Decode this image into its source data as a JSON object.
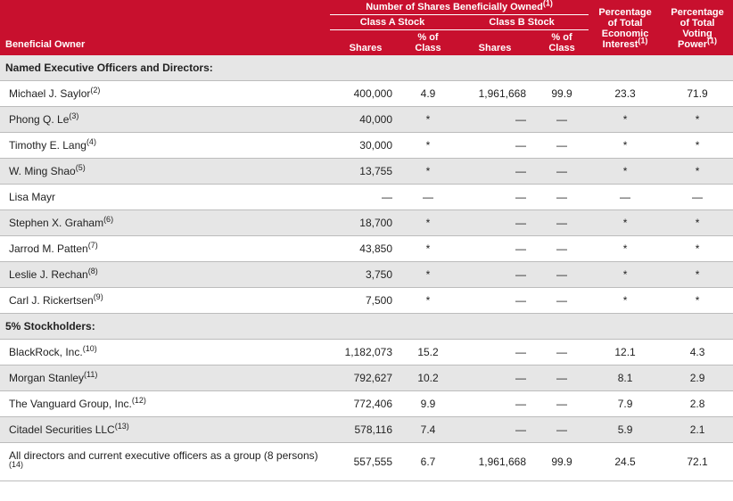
{
  "colors": {
    "header_bg": "#c8102e",
    "header_text": "#ffffff",
    "row_white": "#ffffff",
    "row_gray": "#e6e6e6",
    "row_border": "#bcbcbc",
    "body_text": "#222222"
  },
  "fonts": {
    "family": "Arial",
    "body_size_pt": 9,
    "header_size_pt": 8
  },
  "header": {
    "shares_owned": "Number of Shares Beneficially Owned",
    "shares_owned_sup": "(1)",
    "class_a": "Class A Stock",
    "class_b": "Class B Stock",
    "beneficial_owner": "Beneficial Owner",
    "shares": "Shares",
    "pct_of_class": "% of Class",
    "pct_econ": "Percentage of Total Economic Interest",
    "pct_econ_sup": "(1)",
    "pct_vote": "Percentage of Total Voting Power",
    "pct_vote_sup": "(1)"
  },
  "sections": {
    "named": "Named Executive Officers and Directors:",
    "five_pct": "5% Stockholders:"
  },
  "rows": [
    {
      "name": "Michael J. Saylor",
      "sup": "(2)",
      "sa": "400,000",
      "pa": "4.9",
      "sb": "1,961,668",
      "pb": "99.9",
      "ei": "23.3",
      "vp": "71.9"
    },
    {
      "name": "Phong Q. Le",
      "sup": "(3)",
      "sa": "40,000",
      "pa": "*",
      "sb": "—",
      "pb": "—",
      "ei": "*",
      "vp": "*"
    },
    {
      "name": "Timothy E. Lang",
      "sup": "(4)",
      "sa": "30,000",
      "pa": "*",
      "sb": "—",
      "pb": "—",
      "ei": "*",
      "vp": "*"
    },
    {
      "name": "W. Ming Shao",
      "sup": "(5)",
      "sa": "13,755",
      "pa": "*",
      "sb": "—",
      "pb": "—",
      "ei": "*",
      "vp": "*"
    },
    {
      "name": "Lisa Mayr",
      "sup": "",
      "sa": "—",
      "pa": "—",
      "sb": "—",
      "pb": "—",
      "ei": "—",
      "vp": "—"
    },
    {
      "name": "Stephen X. Graham",
      "sup": "(6)",
      "sa": "18,700",
      "pa": "*",
      "sb": "—",
      "pb": "—",
      "ei": "*",
      "vp": "*"
    },
    {
      "name": "Jarrod M. Patten",
      "sup": "(7)",
      "sa": "43,850",
      "pa": "*",
      "sb": "—",
      "pb": "—",
      "ei": "*",
      "vp": "*"
    },
    {
      "name": "Leslie J. Rechan",
      "sup": "(8)",
      "sa": "3,750",
      "pa": "*",
      "sb": "—",
      "pb": "—",
      "ei": "*",
      "vp": "*"
    },
    {
      "name": "Carl J. Rickertsen",
      "sup": "(9)",
      "sa": "7,500",
      "pa": "*",
      "sb": "—",
      "pb": "—",
      "ei": "*",
      "vp": "*"
    }
  ],
  "rows2": [
    {
      "name": "BlackRock, Inc.",
      "sup": "(10)",
      "sa": "1,182,073",
      "pa": "15.2",
      "sb": "—",
      "pb": "—",
      "ei": "12.1",
      "vp": "4.3"
    },
    {
      "name": "Morgan Stanley",
      "sup": "(11)",
      "sa": "792,627",
      "pa": "10.2",
      "sb": "—",
      "pb": "—",
      "ei": "8.1",
      "vp": "2.9"
    },
    {
      "name": "The Vanguard Group, Inc.",
      "sup": "(12)",
      "sa": "772,406",
      "pa": "9.9",
      "sb": "—",
      "pb": "—",
      "ei": "7.9",
      "vp": "2.8"
    },
    {
      "name": "Citadel Securities LLC",
      "sup": "(13)",
      "sa": "578,116",
      "pa": "7.4",
      "sb": "—",
      "pb": "—",
      "ei": "5.9",
      "vp": "2.1"
    },
    {
      "name": "All directors and current executive officers as a group (8 persons)",
      "sup": "(14)",
      "sa": "557,555",
      "pa": "6.7",
      "sb": "1,961,668",
      "pb": "99.9",
      "ei": "24.5",
      "vp": "72.1"
    }
  ]
}
